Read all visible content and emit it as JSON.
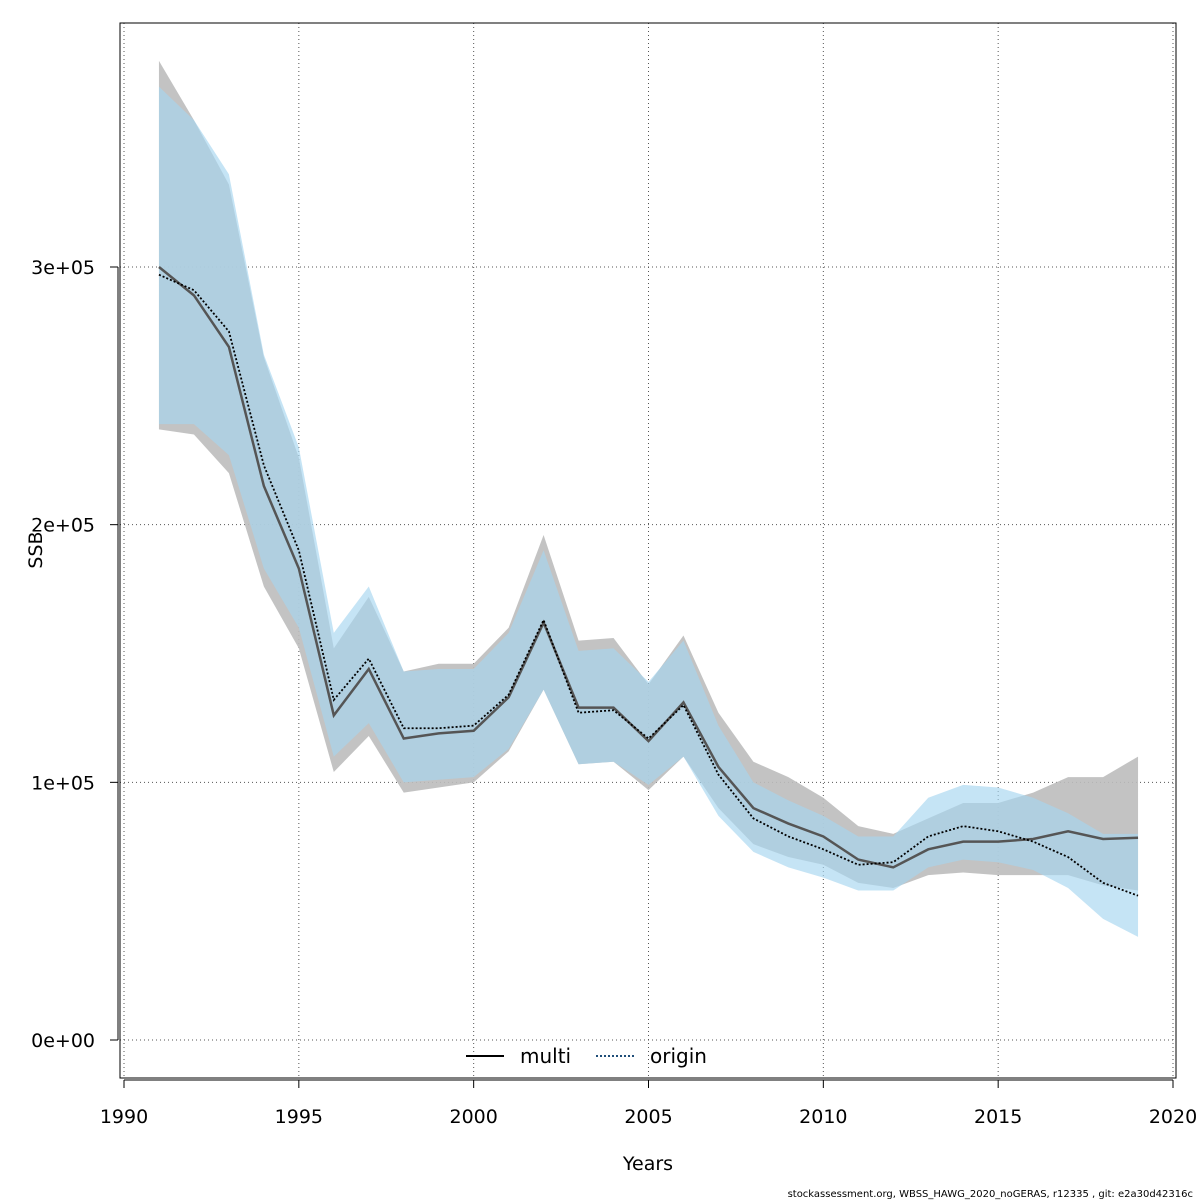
{
  "chart_data": {
    "type": "area",
    "xlabel": "Years",
    "ylabel": "SSB",
    "xlim": [
      1990,
      2020
    ],
    "ylim": [
      -15000,
      395000
    ],
    "x_ticks": [
      1990,
      1995,
      2000,
      2005,
      2010,
      2015,
      2020
    ],
    "y_ticks": [
      {
        "value": 0,
        "label": "0e+00"
      },
      {
        "value": 100000,
        "label": "1e+05"
      },
      {
        "value": 200000,
        "label": "2e+05"
      },
      {
        "value": 300000,
        "label": "3e+05"
      }
    ],
    "grid": true,
    "legend_position": "bottom",
    "x": [
      1991,
      1992,
      1993,
      1994,
      1995,
      1996,
      1997,
      1998,
      1999,
      2000,
      2001,
      2002,
      2003,
      2004,
      2005,
      2006,
      2007,
      2008,
      2009,
      2010,
      2011,
      2012,
      2013,
      2014,
      2015,
      2016,
      2017,
      2018,
      2019
    ],
    "series": [
      {
        "name": "multi",
        "line_style": "solid",
        "line_color": "#555555",
        "band_color": "#bdbdbd",
        "values": [
          300000,
          289000,
          269000,
          215000,
          183000,
          126000,
          144000,
          117000,
          119000,
          120000,
          133000,
          162000,
          129000,
          129000,
          116000,
          131000,
          106000,
          90000,
          84000,
          79000,
          70000,
          67000,
          74000,
          77000,
          77000,
          78000,
          81000,
          78000,
          78500
        ],
        "lower": [
          237000,
          235000,
          220000,
          176000,
          152000,
          104000,
          118000,
          96000,
          98000,
          100000,
          112000,
          136000,
          107000,
          108000,
          97000,
          110000,
          90000,
          76000,
          71000,
          68000,
          61000,
          59000,
          64000,
          65000,
          64000,
          64000,
          64000,
          60000,
          58000
        ],
        "upper": [
          380000,
          357000,
          332000,
          265000,
          226000,
          152000,
          172000,
          143000,
          146000,
          146000,
          160000,
          196000,
          155000,
          156000,
          138000,
          157000,
          127000,
          108000,
          102000,
          94000,
          83000,
          80000,
          86000,
          92000,
          92000,
          96000,
          102000,
          102000,
          110000
        ]
      },
      {
        "name": "origin",
        "line_style": "dotted",
        "line_color": "#000000",
        "band_color": "#a6d5f0",
        "values": [
          297000,
          291000,
          275000,
          223000,
          190000,
          132000,
          148000,
          121000,
          121000,
          122000,
          134000,
          163000,
          127000,
          128000,
          117000,
          130000,
          103000,
          86000,
          79000,
          74000,
          68000,
          69000,
          79000,
          83000,
          81000,
          77000,
          71000,
          61000,
          56000
        ],
        "lower": [
          239000,
          239000,
          227000,
          183000,
          160000,
          110000,
          123000,
          100000,
          101000,
          102000,
          113000,
          136000,
          107000,
          108000,
          99000,
          110000,
          87000,
          73000,
          67000,
          63000,
          58000,
          58000,
          67000,
          70000,
          69000,
          66000,
          59000,
          47000,
          40000
        ],
        "upper": [
          370000,
          357000,
          336000,
          266000,
          230000,
          158000,
          176000,
          143000,
          144000,
          144000,
          158000,
          190000,
          151000,
          152000,
          139000,
          155000,
          122000,
          100000,
          93000,
          87000,
          79000,
          79000,
          94000,
          99000,
          98000,
          94000,
          88000,
          80000,
          80000
        ]
      }
    ],
    "footer_text": "stockassessment.org, WBSS_HAWG_2020_noGERAS, r12335 , git: e2a30d42316c"
  }
}
